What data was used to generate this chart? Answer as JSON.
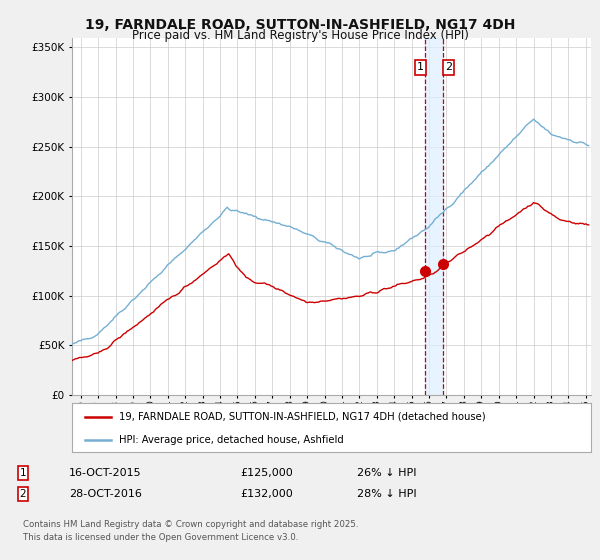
{
  "title": "19, FARNDALE ROAD, SUTTON-IN-ASHFIELD, NG17 4DH",
  "subtitle": "Price paid vs. HM Land Registry's House Price Index (HPI)",
  "hpi_color": "#74afd3",
  "price_color": "#cc0000",
  "dashed_line_color": "#cc0000",
  "band_color": "#ddeeff",
  "background_color": "#f0f0f0",
  "plot_bg_color": "#ffffff",
  "legend_label_price": "19, FARNDALE ROAD, SUTTON-IN-ASHFIELD, NG17 4DH (detached house)",
  "legend_label_hpi": "HPI: Average price, detached house, Ashfield",
  "annotation1_label": "1",
  "annotation1_date": "16-OCT-2015",
  "annotation1_price": "£125,000",
  "annotation1_pct": "26% ↓ HPI",
  "annotation2_label": "2",
  "annotation2_date": "28-OCT-2016",
  "annotation2_price": "£132,000",
  "annotation2_pct": "28% ↓ HPI",
  "footer": "Contains HM Land Registry data © Crown copyright and database right 2025.\nThis data is licensed under the Open Government Licence v3.0.",
  "ylim": [
    0,
    360000
  ],
  "yticks": [
    0,
    50000,
    100000,
    150000,
    200000,
    250000,
    300000,
    350000
  ],
  "sale1_year": 2015.79,
  "sale1_value": 125000,
  "sale2_year": 2016.83,
  "sale2_value": 132000,
  "xmin": 1995.5,
  "xmax": 2025.3
}
